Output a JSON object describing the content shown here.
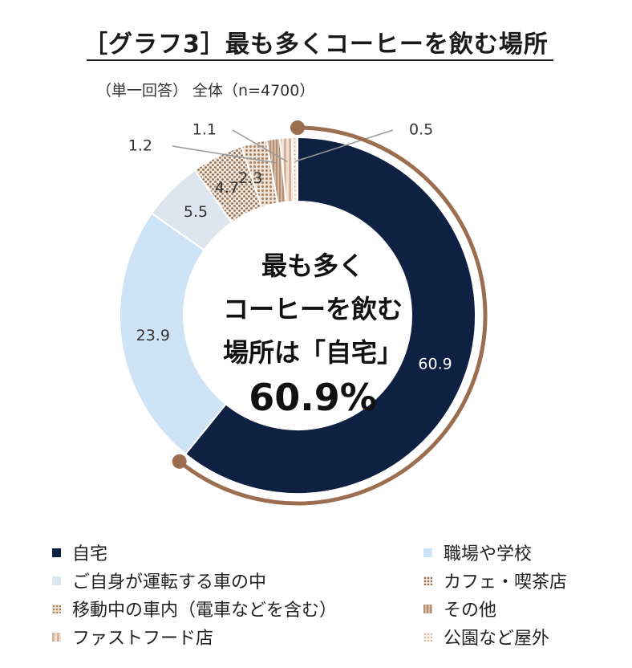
{
  "title": "［グラフ3］最も多くコーヒーを飲む場所",
  "subtitle": "（単一回答） 全体（n=4700）",
  "center_text": {
    "line1": "最も多く",
    "line2": "コーヒーを飲む",
    "line3": "場所は「自宅」",
    "line4": "60.9%"
  },
  "colors": {
    "home": "#0f2142",
    "workplace": "#cfe3f7",
    "own_car": "#dde5ee",
    "cafe": "#a88468",
    "transit": "#b99a7e",
    "other": "#c2a089",
    "fastfood": "#e3cab8",
    "park_outdoor": "#efe3d8",
    "arc": "#9a6e4f"
  },
  "chart_data": {
    "type": "pie",
    "donut": true,
    "title": "［グラフ3］最も多くコーヒーを飲む場所",
    "subtitle": "（単一回答） 全体（n=4700）",
    "unit": "%",
    "categories": [
      "自宅",
      "職場や学校",
      "ご自身が運転する車の中",
      "カフェ・喫茶店",
      "移動中の車内（電車などを含む）",
      "その他",
      "ファストフード店",
      "公園など屋外"
    ],
    "values": [
      60.9,
      23.9,
      5.5,
      4.7,
      2.3,
      1.2,
      1.1,
      0.5
    ],
    "data_labels": [
      "60.9",
      "23.9",
      "5.5",
      "4.7",
      "2.3",
      "1.2",
      "1.1",
      "0.5"
    ],
    "legend_placement": "bottom"
  },
  "legend": [
    {
      "key": "home",
      "label": "自宅"
    },
    {
      "key": "workplace",
      "label": "職場や学校"
    },
    {
      "key": "own_car",
      "label": "ご自身が運転する車の中"
    },
    {
      "key": "cafe",
      "label": "カフェ・喫茶店"
    },
    {
      "key": "transit",
      "label": "移動中の車内（電車などを含む）"
    },
    {
      "key": "other",
      "label": "その他"
    },
    {
      "key": "fastfood",
      "label": "ファストフード店"
    },
    {
      "key": "park_outdoor",
      "label": "公園など屋外"
    }
  ]
}
